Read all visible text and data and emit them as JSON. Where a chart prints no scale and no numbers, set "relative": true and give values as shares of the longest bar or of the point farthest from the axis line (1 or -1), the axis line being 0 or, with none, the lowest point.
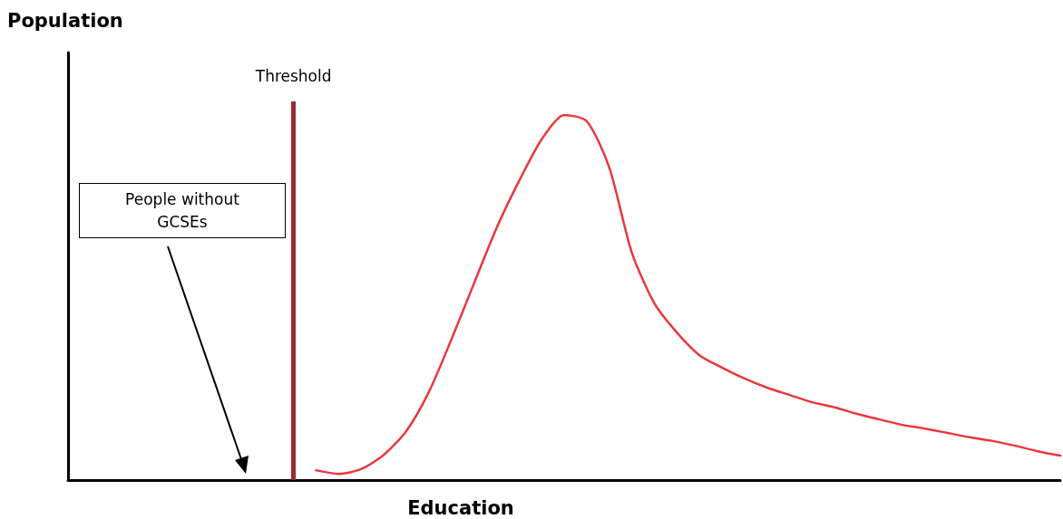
{
  "chart_data": {
    "type": "line",
    "relative": true,
    "xlabel": "Education",
    "ylabel": "Population",
    "categories": [
      null,
      null,
      null,
      null,
      null,
      null,
      null,
      null,
      null,
      null,
      null,
      null,
      null,
      null,
      null,
      null,
      null,
      null,
      null,
      null,
      null,
      null,
      null,
      null,
      null,
      null,
      null,
      null,
      null,
      null,
      null,
      null,
      null,
      null,
      null,
      null,
      null,
      null,
      null,
      null,
      null,
      null,
      null,
      null,
      null
    ],
    "series": [
      {
        "color": "#e8383d",
        "values": [
          null,
          null,
          null,
          null,
          null,
          null,
          null,
          null,
          null,
          null,
          null,
          0.027,
          0.017,
          0.03,
          0.069,
          0.134,
          0.241,
          0.385,
          0.538,
          0.69,
          0.819,
          0.933,
          1.0,
          0.983,
          0.856,
          0.623,
          0.484,
          0.404,
          0.342,
          0.308,
          0.278,
          0.253,
          0.233,
          0.213,
          0.199,
          0.181,
          0.166,
          0.151,
          0.141,
          0.129,
          0.117,
          0.107,
          0.094,
          0.079,
          0.067
        ]
      }
    ],
    "annotations": [
      "Threshold",
      "People without GCSEs"
    ],
    "grid": false,
    "marker": "none",
    "line_style": "solid"
  }
}
